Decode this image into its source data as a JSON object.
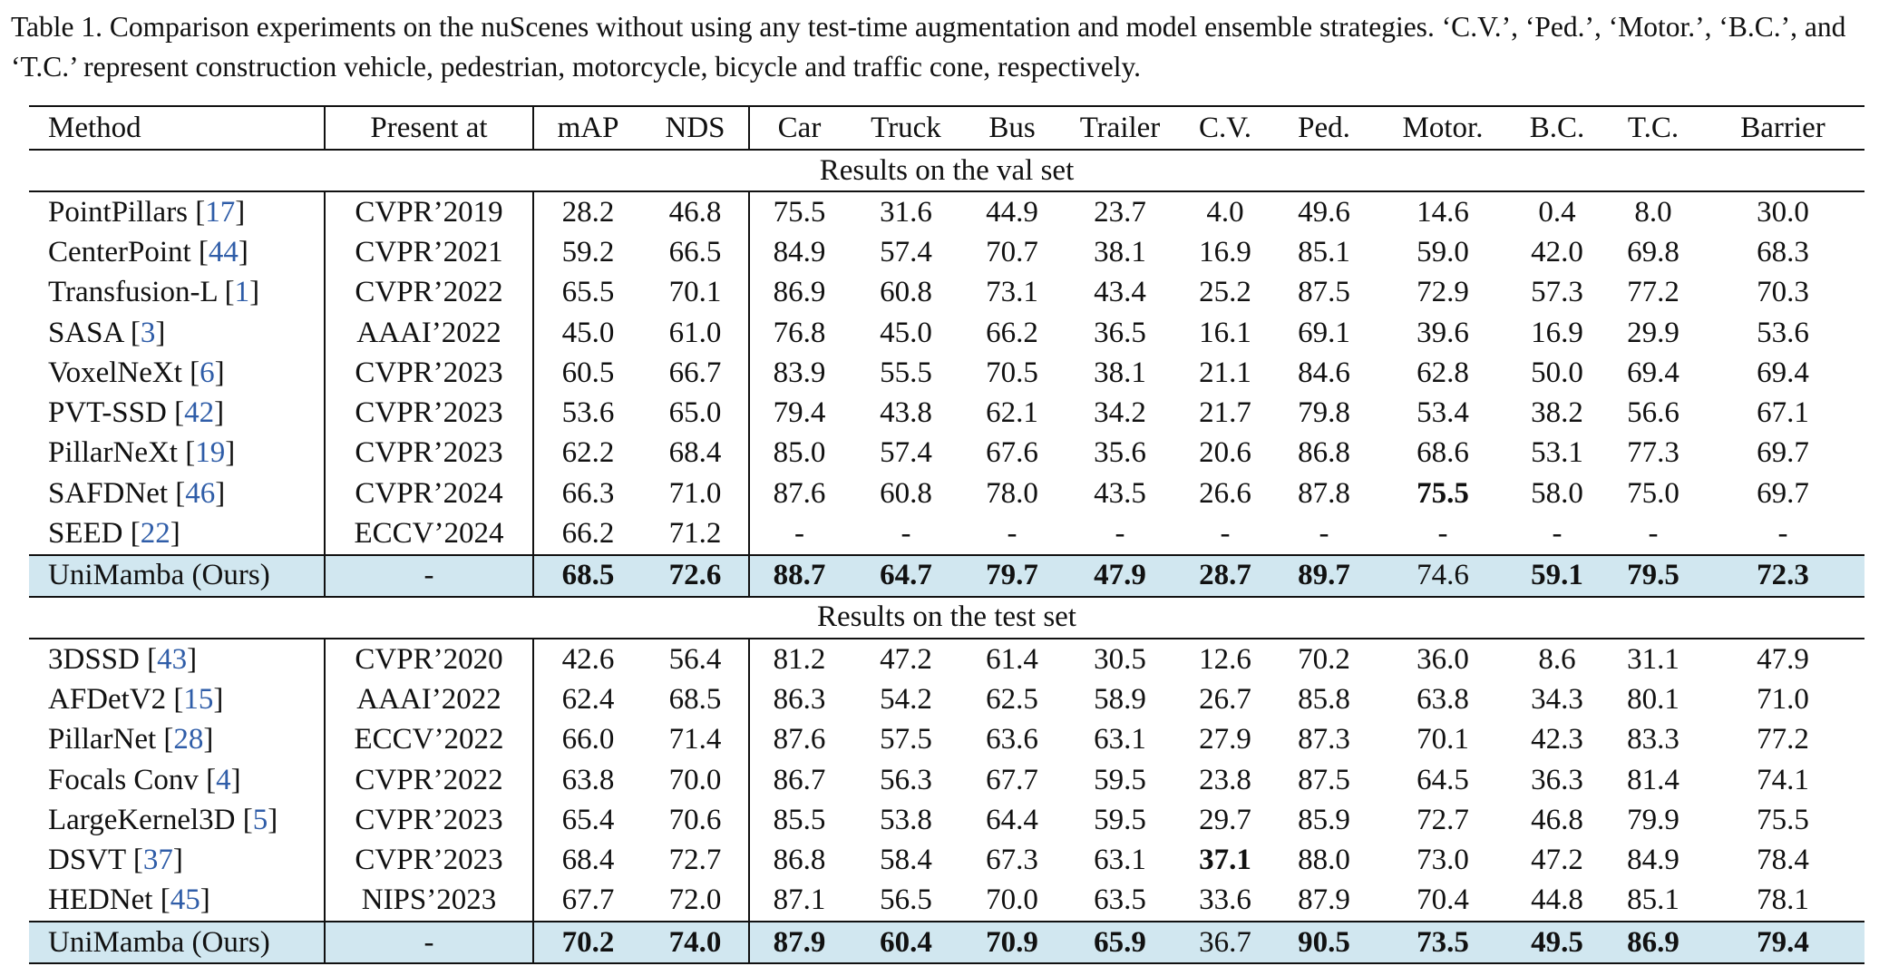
{
  "caption": "Table 1. Comparison experiments on the nuScenes without using any test-time augmentation and model ensemble strategies. ‘C.V.’, ‘Ped.’, ‘Motor.’, ‘B.C.’, and ‘T.C.’ represent construction vehicle, pedestrian, motorcycle, bicycle and traffic cone, respectively.",
  "columns": [
    "Method",
    "Present at",
    "mAP",
    "NDS",
    "Car",
    "Truck",
    "Bus",
    "Trailer",
    "C.V.",
    "Ped.",
    "Motor.",
    "B.C.",
    "T.C.",
    "Barrier"
  ],
  "sections": [
    {
      "title": "Results on the val set",
      "rows": [
        {
          "name": "PointPillars",
          "ref": "17",
          "venue": "CVPR’2019",
          "vals": [
            "28.2",
            "46.8",
            "75.5",
            "31.6",
            "44.9",
            "23.7",
            "4.0",
            "49.6",
            "14.6",
            "0.4",
            "8.0",
            "30.0"
          ]
        },
        {
          "name": "CenterPoint",
          "ref": "44",
          "venue": "CVPR’2021",
          "vals": [
            "59.2",
            "66.5",
            "84.9",
            "57.4",
            "70.7",
            "38.1",
            "16.9",
            "85.1",
            "59.0",
            "42.0",
            "69.8",
            "68.3"
          ]
        },
        {
          "name": "Transfusion-L",
          "ref": "1",
          "venue": "CVPR’2022",
          "vals": [
            "65.5",
            "70.1",
            "86.9",
            "60.8",
            "73.1",
            "43.4",
            "25.2",
            "87.5",
            "72.9",
            "57.3",
            "77.2",
            "70.3"
          ]
        },
        {
          "name": "SASA",
          "ref": "3",
          "venue": "AAAI’2022",
          "vals": [
            "45.0",
            "61.0",
            "76.8",
            "45.0",
            "66.2",
            "36.5",
            "16.1",
            "69.1",
            "39.6",
            "16.9",
            "29.9",
            "53.6"
          ]
        },
        {
          "name": "VoxelNeXt",
          "ref": "6",
          "venue": "CVPR’2023",
          "vals": [
            "60.5",
            "66.7",
            "83.9",
            "55.5",
            "70.5",
            "38.1",
            "21.1",
            "84.6",
            "62.8",
            "50.0",
            "69.4",
            "69.4"
          ]
        },
        {
          "name": "PVT-SSD",
          "ref": "42",
          "venue": "CVPR’2023",
          "vals": [
            "53.6",
            "65.0",
            "79.4",
            "43.8",
            "62.1",
            "34.2",
            "21.7",
            "79.8",
            "53.4",
            "38.2",
            "56.6",
            "67.1"
          ]
        },
        {
          "name": "PillarNeXt",
          "ref": "19",
          "venue": "CVPR’2023",
          "vals": [
            "62.2",
            "68.4",
            "85.0",
            "57.4",
            "67.6",
            "35.6",
            "20.6",
            "86.8",
            "68.6",
            "53.1",
            "77.3",
            "69.7"
          ]
        },
        {
          "name": "SAFDNet",
          "ref": "46",
          "venue": "CVPR’2024",
          "vals": [
            "66.3",
            "71.0",
            "87.6",
            "60.8",
            "78.0",
            "43.5",
            "26.6",
            "87.8",
            "75.5",
            "58.0",
            "75.0",
            "69.7"
          ],
          "bold": [
            8
          ]
        },
        {
          "name": "SEED",
          "ref": "22",
          "venue": "ECCV’2024",
          "vals": [
            "66.2",
            "71.2",
            "-",
            "-",
            "-",
            "-",
            "-",
            "-",
            "-",
            "-",
            "-",
            "-"
          ]
        },
        {
          "name": "UniMamba (Ours)",
          "ref": "",
          "venue": "-",
          "vals": [
            "68.5",
            "72.6",
            "88.7",
            "64.7",
            "79.7",
            "47.9",
            "28.7",
            "89.7",
            "74.6",
            "59.1",
            "79.5",
            "72.3"
          ],
          "bold": [
            0,
            1,
            2,
            3,
            4,
            5,
            6,
            7,
            9,
            10,
            11
          ],
          "highlight": true
        }
      ]
    },
    {
      "title": "Results on the test set",
      "rows": [
        {
          "name": "3DSSD",
          "ref": "43",
          "venue": "CVPR’2020",
          "vals": [
            "42.6",
            "56.4",
            "81.2",
            "47.2",
            "61.4",
            "30.5",
            "12.6",
            "70.2",
            "36.0",
            "8.6",
            "31.1",
            "47.9"
          ]
        },
        {
          "name": "AFDetV2",
          "ref": "15",
          "venue": "AAAI’2022",
          "vals": [
            "62.4",
            "68.5",
            "86.3",
            "54.2",
            "62.5",
            "58.9",
            "26.7",
            "85.8",
            "63.8",
            "34.3",
            "80.1",
            "71.0"
          ]
        },
        {
          "name": "PillarNet",
          "ref": "28",
          "venue": "ECCV’2022",
          "vals": [
            "66.0",
            "71.4",
            "87.6",
            "57.5",
            "63.6",
            "63.1",
            "27.9",
            "87.3",
            "70.1",
            "42.3",
            "83.3",
            "77.2"
          ]
        },
        {
          "name": "Focals Conv",
          "ref": "4",
          "venue": "CVPR’2022",
          "vals": [
            "63.8",
            "70.0",
            "86.7",
            "56.3",
            "67.7",
            "59.5",
            "23.8",
            "87.5",
            "64.5",
            "36.3",
            "81.4",
            "74.1"
          ]
        },
        {
          "name": "LargeKernel3D",
          "ref": "5",
          "venue": "CVPR’2023",
          "vals": [
            "65.4",
            "70.6",
            "85.5",
            "53.8",
            "64.4",
            "59.5",
            "29.7",
            "85.9",
            "72.7",
            "46.8",
            "79.9",
            "75.5"
          ]
        },
        {
          "name": "DSVT",
          "ref": "37",
          "venue": "CVPR’2023",
          "vals": [
            "68.4",
            "72.7",
            "86.8",
            "58.4",
            "67.3",
            "63.1",
            "37.1",
            "88.0",
            "73.0",
            "47.2",
            "84.9",
            "78.4"
          ],
          "bold": [
            6
          ]
        },
        {
          "name": "HEDNet",
          "ref": "45",
          "venue": "NIPS’2023",
          "vals": [
            "67.7",
            "72.0",
            "87.1",
            "56.5",
            "70.0",
            "63.5",
            "33.6",
            "87.9",
            "70.4",
            "44.8",
            "85.1",
            "78.1"
          ]
        },
        {
          "name": "UniMamba (Ours)",
          "ref": "",
          "venue": "-",
          "vals": [
            "70.2",
            "74.0",
            "87.9",
            "60.4",
            "70.9",
            "65.9",
            "36.7",
            "90.5",
            "73.5",
            "49.5",
            "86.9",
            "79.4"
          ],
          "bold": [
            0,
            1,
            2,
            3,
            4,
            5,
            7,
            8,
            9,
            10,
            11
          ],
          "highlight": true
        }
      ]
    }
  ]
}
